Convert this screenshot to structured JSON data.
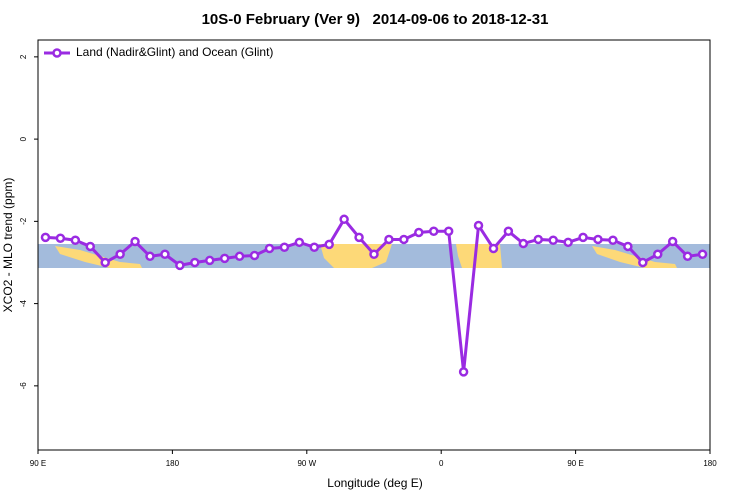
{
  "chart_data": {
    "type": "line",
    "title": "10S-0 February (Ver 9)   2014-09-06 to 2018-12-31",
    "x_label": "Longitude (deg E)",
    "y_label": "XCO2 - MLO trend (ppm)",
    "xlim": [
      90,
      540
    ],
    "xticks": [
      {
        "value": 90,
        "label": "90 E"
      },
      180,
      {
        "value": 270,
        "label": "90 W"
      },
      {
        "value": 360,
        "label": "0"
      },
      {
        "value": 450,
        "label": "90 E"
      },
      {
        "value": 540,
        "label": "180"
      }
    ],
    "ylim": [
      -7.56,
      2.41
    ],
    "yticks": [
      2,
      0,
      -2,
      -4,
      -6
    ],
    "grid": false,
    "legend": "top-left",
    "x": [
      95,
      105,
      115,
      125,
      135,
      145,
      155,
      165,
      175,
      185,
      195,
      205,
      215,
      225,
      235,
      245,
      255,
      265,
      275,
      285,
      295,
      305,
      315,
      325,
      335,
      345,
      355,
      365,
      375,
      385,
      395,
      405,
      415,
      425,
      435,
      445,
      455,
      465,
      475,
      485,
      495,
      505,
      515,
      525,
      535
    ],
    "series": [
      {
        "name": "Land (Nadir&Glint) and Ocean (Glint)",
        "color": "#9a2be2",
        "values": [
          -2.39,
          -2.41,
          -2.46,
          -2.61,
          -3.0,
          -2.8,
          -2.49,
          -2.85,
          -2.8,
          -3.07,
          -3.0,
          -2.95,
          -2.9,
          -2.85,
          -2.83,
          -2.66,
          -2.63,
          -2.51,
          -2.63,
          -2.56,
          -1.95,
          -2.39,
          -2.8,
          -2.44,
          -2.44,
          -2.27,
          -2.24,
          -2.24,
          -5.66,
          -2.1,
          -2.66,
          -2.24,
          -2.54,
          -2.44,
          -2.46,
          -2.51,
          -2.39,
          -2.44,
          -2.46,
          -2.61,
          -3.0,
          -2.8,
          -2.49,
          -2.85,
          -2.8
        ]
      }
    ]
  }
}
